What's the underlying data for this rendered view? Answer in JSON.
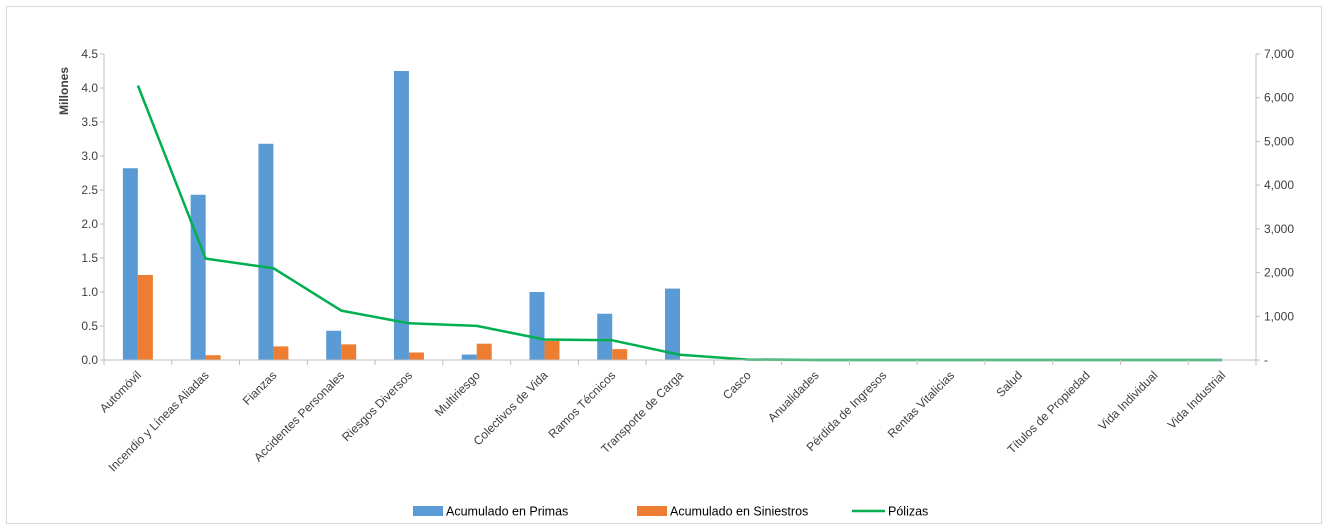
{
  "chart_data": {
    "type": "bar",
    "categories": [
      "Automóvil",
      "Incendio y Líneas Aliadas",
      "Fianzas",
      "Accidentes Personales",
      "Riesgos  Diversos",
      "Multiriesgo",
      "Colectivos de Vida",
      "Ramos Técnicos",
      "Transporte de Carga",
      "Casco",
      "Anualidades",
      "Pérdida de Ingresos",
      "Rentas Vitalicias",
      "Salud",
      "Títulos de Propiedad",
      "Vida Individual",
      "Vida Industrial"
    ],
    "series": [
      {
        "name": "Acumulado en Primas",
        "kind": "bar",
        "axis": "left",
        "color": "#5b9bd5",
        "values": [
          2.82,
          2.43,
          3.18,
          0.43,
          4.25,
          0.08,
          1.0,
          0.68,
          1.05,
          0,
          0,
          0,
          0,
          0,
          0,
          0,
          0
        ]
      },
      {
        "name": "Acumulado en Siniestros",
        "kind": "bar",
        "axis": "left",
        "color": "#ed7d31",
        "values": [
          1.25,
          0.07,
          0.2,
          0.23,
          0.11,
          0.24,
          0.28,
          0.16,
          0.0,
          0,
          0,
          0,
          0,
          0,
          0,
          0,
          0
        ]
      },
      {
        "name": "Pólizas",
        "kind": "line",
        "axis": "right",
        "color": "#00b050",
        "values": [
          6280,
          2320,
          2100,
          1130,
          840,
          780,
          470,
          450,
          120,
          10,
          0,
          0,
          0,
          0,
          0,
          0,
          0
        ]
      }
    ],
    "ylabel": "Millones",
    "y_left": {
      "min": 0,
      "max": 4.5,
      "step": 0.5,
      "tick_labels": [
        "0.0",
        "0.5",
        "1.0",
        "1.5",
        "2.0",
        "2.5",
        "3.0",
        "3.5",
        "4.0",
        "4.5"
      ]
    },
    "y_right": {
      "min": 0,
      "max": 7000,
      "step": 1000,
      "tick_labels": [
        "-",
        "1,000",
        "2,000",
        "3,000",
        "4,000",
        "5,000",
        "6,000",
        "7,000"
      ]
    },
    "grid": false,
    "legend": "bottom"
  }
}
